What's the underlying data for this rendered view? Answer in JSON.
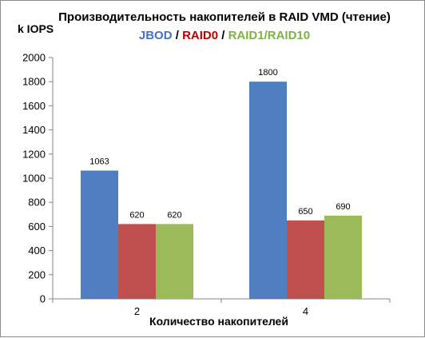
{
  "chart_data": {
    "type": "bar",
    "title": "Производительность накопителей в RAID VMD (чтение)",
    "subtitle_parts": [
      {
        "text": "JBOD",
        "color": "#4472c4"
      },
      {
        "text": " / ",
        "color": "#000000"
      },
      {
        "text": "RAID0",
        "color": "#c00000"
      },
      {
        "text": " / ",
        "color": "#000000"
      },
      {
        "text": "RAID1/RAID10",
        "color": "#7cb342"
      }
    ],
    "ylabel": "k IOPS",
    "xlabel": "Количество накопителей",
    "categories": [
      "2",
      "4"
    ],
    "series": [
      {
        "name": "JBOD",
        "color": "#4f7ec1",
        "values": [
          1063,
          1800
        ]
      },
      {
        "name": "RAID0",
        "color": "#c0504d",
        "values": [
          620,
          650
        ]
      },
      {
        "name": "RAID1/RAID10",
        "color": "#9bbb59",
        "values": [
          620,
          690
        ]
      }
    ],
    "ylim": [
      0,
      2000
    ],
    "yticks": [
      0,
      200,
      400,
      600,
      800,
      1000,
      1200,
      1400,
      1600,
      1800,
      2000
    ],
    "grid": false,
    "legend": "none"
  }
}
